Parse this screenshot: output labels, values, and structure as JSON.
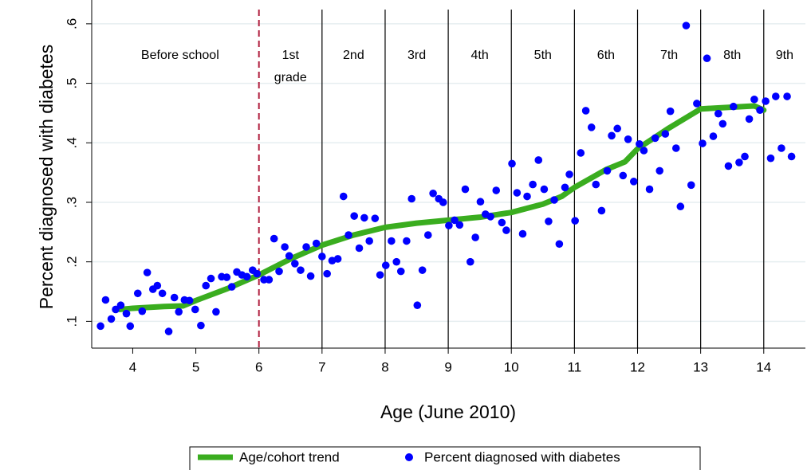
{
  "chart_data": {
    "type": "scatter",
    "x_label": "Age (June 2010)",
    "y_label": "Percent diagnosed with diabetes",
    "xlim": [
      3.35,
      14.66
    ],
    "ylim": [
      0.055,
      0.64
    ],
    "xticks": [
      4,
      5,
      6,
      7,
      8,
      9,
      10,
      11,
      12,
      13,
      14
    ],
    "yticks": [
      {
        "value": 0.1,
        "label": ".1"
      },
      {
        "value": 0.2,
        "label": ".2"
      },
      {
        "value": 0.3,
        "label": ".3"
      },
      {
        "value": 0.4,
        "label": ".4"
      },
      {
        "value": 0.5,
        "label": ".5"
      },
      {
        "value": 0.6,
        "label": ".6"
      }
    ],
    "grid": true,
    "grid_color": "#e6eef0",
    "legend": "bottom",
    "reference_lines": [
      {
        "x": 6,
        "color": "#b0203f",
        "style": "dashed"
      },
      {
        "x": 7,
        "color": "#000000",
        "style": "solid"
      },
      {
        "x": 8,
        "color": "#000000",
        "style": "solid"
      },
      {
        "x": 9,
        "color": "#000000",
        "style": "solid"
      },
      {
        "x": 10,
        "color": "#000000",
        "style": "solid"
      },
      {
        "x": 11,
        "color": "#000000",
        "style": "solid"
      },
      {
        "x": 12,
        "color": "#000000",
        "style": "solid"
      },
      {
        "x": 13,
        "color": "#000000",
        "style": "solid"
      },
      {
        "x": 14,
        "color": "#000000",
        "style": "solid"
      }
    ],
    "annotations": [
      "Before school",
      "1st grade",
      "2nd",
      "3rd",
      "4th",
      "5th",
      "6th",
      "7th",
      "8th",
      "9th"
    ],
    "series": [
      {
        "name": "Age/cohort trend",
        "type": "line",
        "color": "#3aad1f",
        "x": [
          3.8,
          4,
          4.5,
          4.8,
          5,
          5.5,
          6,
          6.5,
          7,
          7.5,
          8,
          8.5,
          9,
          9.5,
          10,
          10.5,
          10.8,
          11,
          11.5,
          11.8,
          12,
          12.5,
          13,
          13.5,
          13.85,
          14
        ],
        "values": [
          0.12,
          0.122,
          0.125,
          0.126,
          0.135,
          0.155,
          0.178,
          0.205,
          0.228,
          0.245,
          0.258,
          0.265,
          0.27,
          0.275,
          0.283,
          0.297,
          0.31,
          0.325,
          0.355,
          0.368,
          0.39,
          0.425,
          0.457,
          0.46,
          0.462,
          0.455
        ]
      },
      {
        "name": "Percent diagnosed with diabetes",
        "type": "scatter",
        "color": "#0000ff",
        "x": [
          3.49,
          3.57,
          3.66,
          3.73,
          3.81,
          3.9,
          3.96,
          4.08,
          4.15,
          4.23,
          4.32,
          4.39,
          4.47,
          4.57,
          4.66,
          4.73,
          4.82,
          4.9,
          4.99,
          5.08,
          5.16,
          5.24,
          5.32,
          5.41,
          5.49,
          5.57,
          5.65,
          5.73,
          5.81,
          5.9,
          5.97,
          6.08,
          6.16,
          6.24,
          6.32,
          6.41,
          6.48,
          6.57,
          6.66,
          6.75,
          6.82,
          6.91,
          7,
          7.08,
          7.16,
          7.25,
          7.34,
          7.42,
          7.51,
          7.59,
          7.67,
          7.75,
          7.84,
          7.92,
          8.01,
          8.1,
          8.18,
          8.25,
          8.34,
          8.42,
          8.51,
          8.59,
          8.68,
          8.76,
          8.85,
          8.92,
          9.01,
          9.1,
          9.18,
          9.27,
          9.35,
          9.43,
          9.51,
          9.59,
          9.67,
          9.76,
          9.85,
          9.92,
          10.01,
          10.09,
          10.18,
          10.25,
          10.34,
          10.43,
          10.52,
          10.59,
          10.68,
          10.76,
          10.85,
          10.92,
          11.01,
          11.1,
          11.18,
          11.27,
          11.34,
          11.43,
          11.52,
          11.59,
          11.68,
          11.77,
          11.85,
          11.94,
          12.03,
          12.1,
          12.19,
          12.28,
          12.35,
          12.44,
          12.52,
          12.61,
          12.68,
          12.77,
          12.85,
          12.94,
          13.03,
          13.1,
          13.2,
          13.28,
          13.35,
          13.44,
          13.52,
          13.61,
          13.7,
          13.77,
          13.85,
          13.94,
          14.03,
          14.11,
          14.19,
          14.28,
          14.37,
          14.44
        ],
        "values": [
          0.092,
          0.136,
          0.104,
          0.12,
          0.127,
          0.113,
          0.092,
          0.147,
          0.117,
          0.182,
          0.154,
          0.16,
          0.147,
          0.083,
          0.14,
          0.116,
          0.136,
          0.135,
          0.12,
          0.093,
          0.16,
          0.172,
          0.116,
          0.175,
          0.174,
          0.158,
          0.183,
          0.178,
          0.175,
          0.186,
          0.18,
          0.17,
          0.17,
          0.239,
          0.184,
          0.225,
          0.21,
          0.197,
          0.186,
          0.225,
          0.176,
          0.231,
          0.209,
          0.18,
          0.202,
          0.205,
          0.31,
          0.245,
          0.277,
          0.223,
          0.274,
          0.235,
          0.273,
          0.178,
          0.194,
          0.235,
          0.2,
          0.184,
          0.235,
          0.306,
          0.127,
          0.186,
          0.245,
          0.315,
          0.306,
          0.3,
          0.261,
          0.27,
          0.262,
          0.322,
          0.2,
          0.241,
          0.301,
          0.28,
          0.276,
          0.32,
          0.266,
          0.253,
          0.365,
          0.316,
          0.247,
          0.31,
          0.33,
          0.371,
          0.322,
          0.268,
          0.304,
          0.23,
          0.325,
          0.347,
          0.269,
          0.383,
          0.454,
          0.426,
          0.33,
          0.286,
          0.353,
          0.412,
          0.424,
          0.345,
          0.406,
          0.335,
          0.398,
          0.387,
          0.322,
          0.408,
          0.353,
          0.415,
          0.453,
          0.391,
          0.293,
          0.597,
          0.329,
          0.466,
          0.399,
          0.542,
          0.411,
          0.449,
          0.432,
          0.361,
          0.461,
          0.367,
          0.377,
          0.44,
          0.473,
          0.455,
          0.47,
          0.374,
          0.478,
          0.391,
          0.478,
          0.377
        ]
      }
    ]
  }
}
